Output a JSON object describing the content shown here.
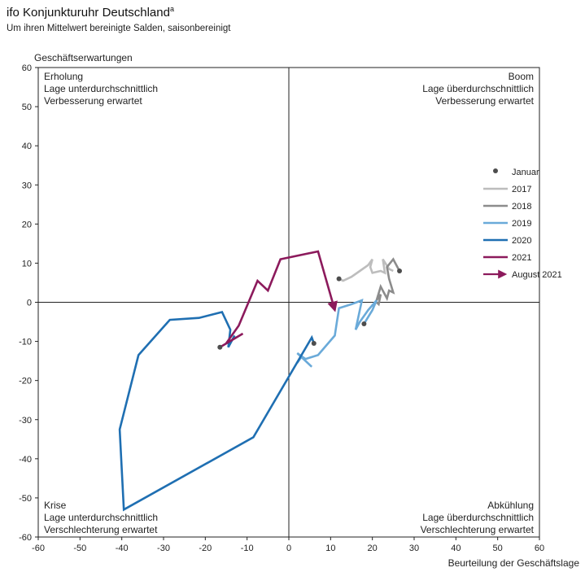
{
  "title": "ifo Konjunkturuhr Deutschland",
  "title_superscript": "a",
  "subtitle": "Um ihren Mittelwert bereinigte Salden, saisonbereinigt",
  "chart_data": {
    "type": "line",
    "title": "ifo Konjunkturuhr Deutschland",
    "subtitle": "Um ihren Mittelwert bereinigte Salden, saisonbereinigt",
    "xlabel": "Beurteilung der Geschäftslage",
    "ylabel": "Geschäftserwartungen",
    "xlim": [
      -60,
      60
    ],
    "ylim": [
      -60,
      60
    ],
    "xticks": [
      -60,
      -50,
      -40,
      -30,
      -20,
      -10,
      0,
      10,
      20,
      30,
      40,
      50,
      60
    ],
    "yticks": [
      -60,
      -50,
      -40,
      -30,
      -20,
      -10,
      0,
      10,
      20,
      30,
      40,
      50,
      60
    ],
    "grid": false,
    "legend_position": "right",
    "quadrants": [
      {
        "id": "erholung",
        "lines": [
          "Erholung",
          "Lage unterdurchschnittlich",
          "Verbesserung erwartet"
        ],
        "position": "top-left"
      },
      {
        "id": "boom",
        "lines": [
          "Boom",
          "Lage überdurchschnittlich",
          "Verbesserung erwartet"
        ],
        "position": "top-right"
      },
      {
        "id": "krise",
        "lines": [
          "Krise",
          "Lage unterdurchschnittlich",
          "Verschlechterung erwartet"
        ],
        "position": "bottom-left"
      },
      {
        "id": "abkuehlung",
        "lines": [
          "Abkühlung",
          "Lage überdurchschnittlich",
          "Verschlechterung erwartet"
        ],
        "position": "bottom-right"
      }
    ],
    "legend": [
      {
        "label": "Januar",
        "kind": "dot",
        "color": "#4d4d4d"
      },
      {
        "label": "2017",
        "kind": "line",
        "color": "#bdbdbd"
      },
      {
        "label": "2018",
        "kind": "line",
        "color": "#8c8c8c"
      },
      {
        "label": "2019",
        "kind": "line",
        "color": "#6aaad9"
      },
      {
        "label": "2020",
        "kind": "line",
        "color": "#1f6fb2"
      },
      {
        "label": "2021",
        "kind": "line",
        "color": "#8c1a5c"
      },
      {
        "label": "August 2021",
        "kind": "arrow",
        "color": "#8c1a5c"
      }
    ],
    "series": [
      {
        "name": "2017",
        "color": "#bdbdbd",
        "points": [
          [
            12,
            6
          ],
          [
            13,
            5.5
          ],
          [
            15,
            6.5
          ],
          [
            17,
            8
          ],
          [
            19,
            9.5
          ],
          [
            20,
            11
          ],
          [
            19.5,
            9
          ],
          [
            20,
            7.5
          ],
          [
            22,
            8
          ],
          [
            23,
            7.5
          ],
          [
            22.5,
            11
          ],
          [
            24,
            8.5
          ],
          [
            25,
            8
          ]
        ]
      },
      {
        "name": "2018",
        "color": "#8c8c8c",
        "points": [
          [
            26.5,
            8
          ],
          [
            25,
            11
          ],
          [
            23.5,
            9
          ],
          [
            24,
            6
          ],
          [
            25,
            2.5
          ],
          [
            24,
            3
          ],
          [
            23.5,
            1
          ],
          [
            22,
            4
          ],
          [
            21,
            0.5
          ],
          [
            22,
            2
          ],
          [
            21.5,
            -0.5
          ],
          [
            21,
            0
          ]
        ]
      },
      {
        "name": "2019",
        "color": "#6aaad9",
        "points": [
          [
            18,
            -5.5
          ],
          [
            20,
            -2
          ],
          [
            21,
            0.5
          ],
          [
            19,
            -2
          ],
          [
            17,
            -5
          ],
          [
            16,
            -7
          ],
          [
            17.5,
            0.5
          ],
          [
            15,
            -0.5
          ],
          [
            12,
            -1.5
          ],
          [
            11,
            -8.5
          ],
          [
            7,
            -13.5
          ],
          [
            4,
            -14.5
          ],
          [
            2,
            -13
          ],
          [
            5.5,
            -16.5
          ],
          [
            3,
            -14
          ],
          [
            2,
            -15.5
          ]
        ]
      },
      {
        "name": "2020",
        "color": "#1f6fb2",
        "points": [
          [
            6,
            -10.5
          ],
          [
            5.5,
            -9
          ],
          [
            -8.5,
            -34.5
          ],
          [
            -39.5,
            -53
          ],
          [
            -40.5,
            -32.5
          ],
          [
            -36,
            -13.5
          ],
          [
            -28.5,
            -4.5
          ],
          [
            -21.5,
            -4
          ],
          [
            -16,
            -2.5
          ],
          [
            -14,
            -7
          ],
          [
            -14.5,
            -11.5
          ],
          [
            -13,
            -8.5
          ]
        ]
      },
      {
        "name": "2021",
        "color": "#8c1a5c",
        "arrow_end": true,
        "points": [
          [
            -16.5,
            -11.5
          ],
          [
            -11,
            -8
          ],
          [
            -15,
            -10.5
          ],
          [
            -12,
            -6
          ],
          [
            -7.5,
            5.5
          ],
          [
            -5,
            3
          ],
          [
            -2,
            11
          ],
          [
            7,
            13
          ],
          [
            11,
            -2
          ]
        ]
      }
    ],
    "januar_points": [
      [
        12,
        6
      ],
      [
        26.5,
        8
      ],
      [
        18,
        -5.5
      ],
      [
        6,
        -10.5
      ],
      [
        -16.5,
        -11.5
      ]
    ]
  }
}
